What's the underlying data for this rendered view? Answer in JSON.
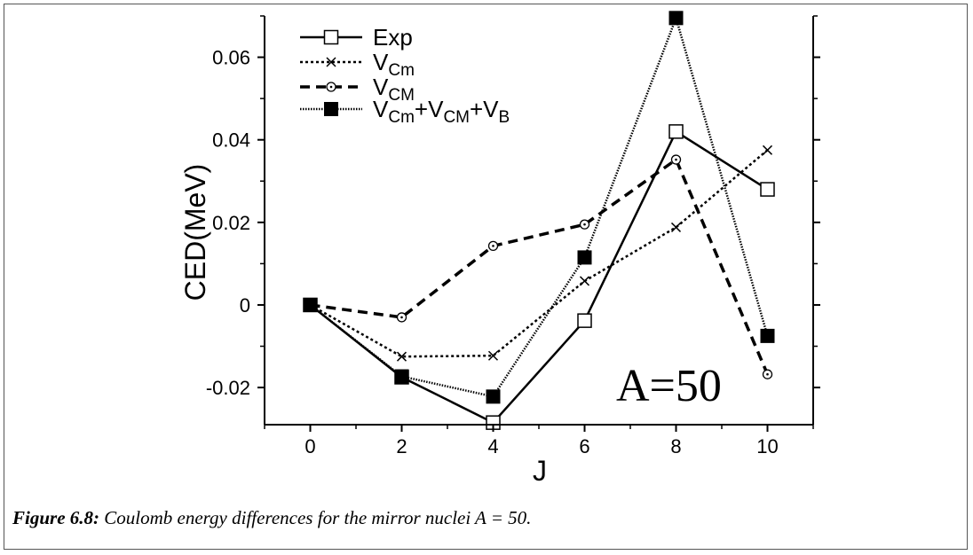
{
  "chart_data": {
    "type": "line",
    "xlabel": "J",
    "ylabel": "CED(MeV)",
    "xlim": [
      -1,
      11
    ],
    "ylim": [
      -0.029,
      0.07
    ],
    "x_ticks": [
      "0",
      "2",
      "4",
      "6",
      "8",
      "10"
    ],
    "y_ticks": [
      "-0.02",
      "0",
      "0.02",
      "0.04",
      "0.06"
    ],
    "legend_position": "top-left",
    "annotation": "A=50",
    "x": [
      0,
      2,
      4,
      6,
      8,
      10
    ],
    "series": [
      {
        "key": "exp",
        "name": "Exp",
        "name_parts": [
          [
            "Exp",
            "n"
          ]
        ],
        "line": "solid",
        "marker": "open-square",
        "color": "#000000",
        "values": [
          0,
          -0.0175,
          -0.0285,
          -0.0038,
          0.042,
          0.028
        ]
      },
      {
        "key": "vcm_small",
        "name": "VCm",
        "name_parts": [
          [
            "V",
            "n"
          ],
          [
            "Cm",
            "sub"
          ]
        ],
        "line": "dotted",
        "marker": "cross",
        "color": "#000000",
        "values": [
          0,
          -0.0125,
          -0.0123,
          0.0058,
          0.0188,
          0.0375
        ]
      },
      {
        "key": "vcm_big",
        "name": "VCM",
        "name_parts": [
          [
            "V",
            "n"
          ],
          [
            "CM",
            "sub"
          ]
        ],
        "line": "dashed",
        "marker": "open-circle",
        "color": "#000000",
        "values": [
          0,
          -0.003,
          0.0143,
          0.0195,
          0.0352,
          -0.0168
        ]
      },
      {
        "key": "vsum",
        "name": "VCm+VCM+VB",
        "name_parts": [
          [
            "V",
            "n"
          ],
          [
            "Cm",
            "sub"
          ],
          [
            "+V",
            "n"
          ],
          [
            "CM",
            "sub"
          ],
          [
            "+V",
            "n"
          ],
          [
            "B",
            "sub"
          ]
        ],
        "line": "fine-dotted",
        "marker": "filled-square",
        "color": "#000000",
        "values": [
          0,
          -0.0173,
          -0.0222,
          0.0115,
          0.0695,
          -0.0075
        ]
      }
    ]
  },
  "caption": {
    "label": "Figure 6.8:",
    "text": " Coulomb energy differences for the mirror nuclei A = 50."
  }
}
